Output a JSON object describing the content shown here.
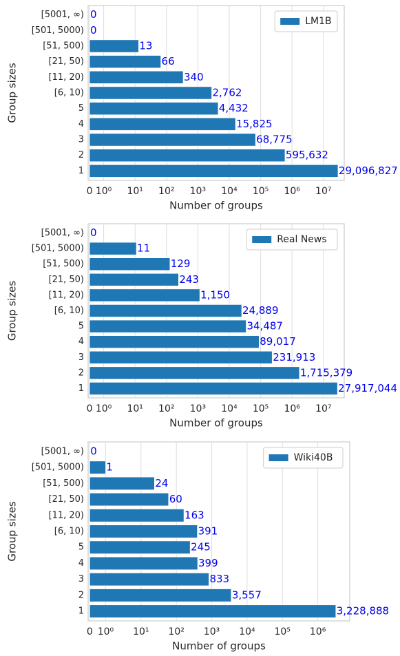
{
  "chart_data": [
    {
      "type": "bar",
      "orientation": "horizontal",
      "xscale": "symlog",
      "xlabel": "Number of groups",
      "ylabel": "Group sizes",
      "legend": "upper right",
      "grid": true,
      "categories": [
        "1",
        "2",
        "3",
        "4",
        "5",
        "[6, 10)",
        "[11, 20)",
        "[21, 50)",
        "[51, 500)",
        "[501, 5000)",
        "[5001, ∞)"
      ],
      "series": [
        {
          "name": "LM1B",
          "color": "#1f77b4",
          "values": [
            29096827,
            595632,
            68775,
            15825,
            4432,
            2762,
            340,
            66,
            13,
            0,
            0
          ],
          "value_labels": [
            "29,096,827",
            "595,632",
            "68,775",
            "15,825",
            "4,432",
            "2,762",
            "340",
            "66",
            "13",
            "0",
            "0"
          ]
        }
      ],
      "xlim": [
        -0.1,
        46000000
      ],
      "xticks": [
        0,
        {
          "value": 1,
          "label": "10⁰"
        },
        {
          "value": 10,
          "label": "10¹"
        },
        {
          "value": 100,
          "label": "10²"
        },
        {
          "value": 1000,
          "label": "10³"
        },
        {
          "value": 10000,
          "label": "10⁴"
        },
        {
          "value": 100000,
          "label": "10⁵"
        },
        {
          "value": 1000000,
          "label": "10⁶"
        },
        {
          "value": 10000000,
          "label": "10⁷"
        }
      ]
    },
    {
      "type": "bar",
      "orientation": "horizontal",
      "xscale": "symlog",
      "xlabel": "Number of groups",
      "ylabel": "Group sizes",
      "legend": "upper right",
      "grid": true,
      "categories": [
        "1",
        "2",
        "3",
        "4",
        "5",
        "[6, 10)",
        "[11, 20)",
        "[21, 50)",
        "[51, 500)",
        "[501, 5000)",
        "[5001, ∞)"
      ],
      "series": [
        {
          "name": "Real News",
          "color": "#1f77b4",
          "values": [
            27917044,
            1715379,
            231913,
            89017,
            34487,
            24889,
            1150,
            243,
            129,
            11,
            0
          ],
          "value_labels": [
            "27,917,044",
            "1,715,379",
            "231,913",
            "89,017",
            "34,487",
            "24,889",
            "1,150",
            "243",
            "129",
            "11",
            "0"
          ]
        }
      ],
      "xlim": [
        -0.1,
        46000000
      ],
      "xticks": [
        0,
        {
          "value": 1,
          "label": "10⁰"
        },
        {
          "value": 10,
          "label": "10¹"
        },
        {
          "value": 100,
          "label": "10²"
        },
        {
          "value": 1000,
          "label": "10³"
        },
        {
          "value": 10000,
          "label": "10⁴"
        },
        {
          "value": 100000,
          "label": "10⁵"
        },
        {
          "value": 1000000,
          "label": "10⁶"
        },
        {
          "value": 10000000,
          "label": "10⁷"
        }
      ]
    },
    {
      "type": "bar",
      "orientation": "horizontal",
      "xscale": "symlog",
      "xlabel": "Number of groups",
      "ylabel": "Group sizes",
      "legend": "upper right",
      "grid": true,
      "categories": [
        "1",
        "2",
        "3",
        "4",
        "5",
        "[6, 10)",
        "[11, 20)",
        "[21, 50)",
        "[51, 500)",
        "[501, 5000)",
        "[5001, ∞)"
      ],
      "series": [
        {
          "name": "Wiki40B",
          "color": "#1f77b4",
          "values": [
            3228888,
            3557,
            833,
            399,
            245,
            391,
            163,
            60,
            24,
            1,
            0
          ],
          "value_labels": [
            "3,228,888",
            "3,557",
            "833",
            "399",
            "245",
            "391",
            "163",
            "60",
            "24",
            "1",
            "0"
          ]
        }
      ],
      "xlim": [
        -0.1,
        8000000
      ],
      "xticks": [
        0,
        {
          "value": 1,
          "label": "10⁰"
        },
        {
          "value": 10,
          "label": "10¹"
        },
        {
          "value": 100,
          "label": "10²"
        },
        {
          "value": 1000,
          "label": "10³"
        },
        {
          "value": 10000,
          "label": "10⁴"
        },
        {
          "value": 100000,
          "label": "10⁵"
        },
        {
          "value": 1000000,
          "label": "10⁶"
        }
      ]
    }
  ]
}
